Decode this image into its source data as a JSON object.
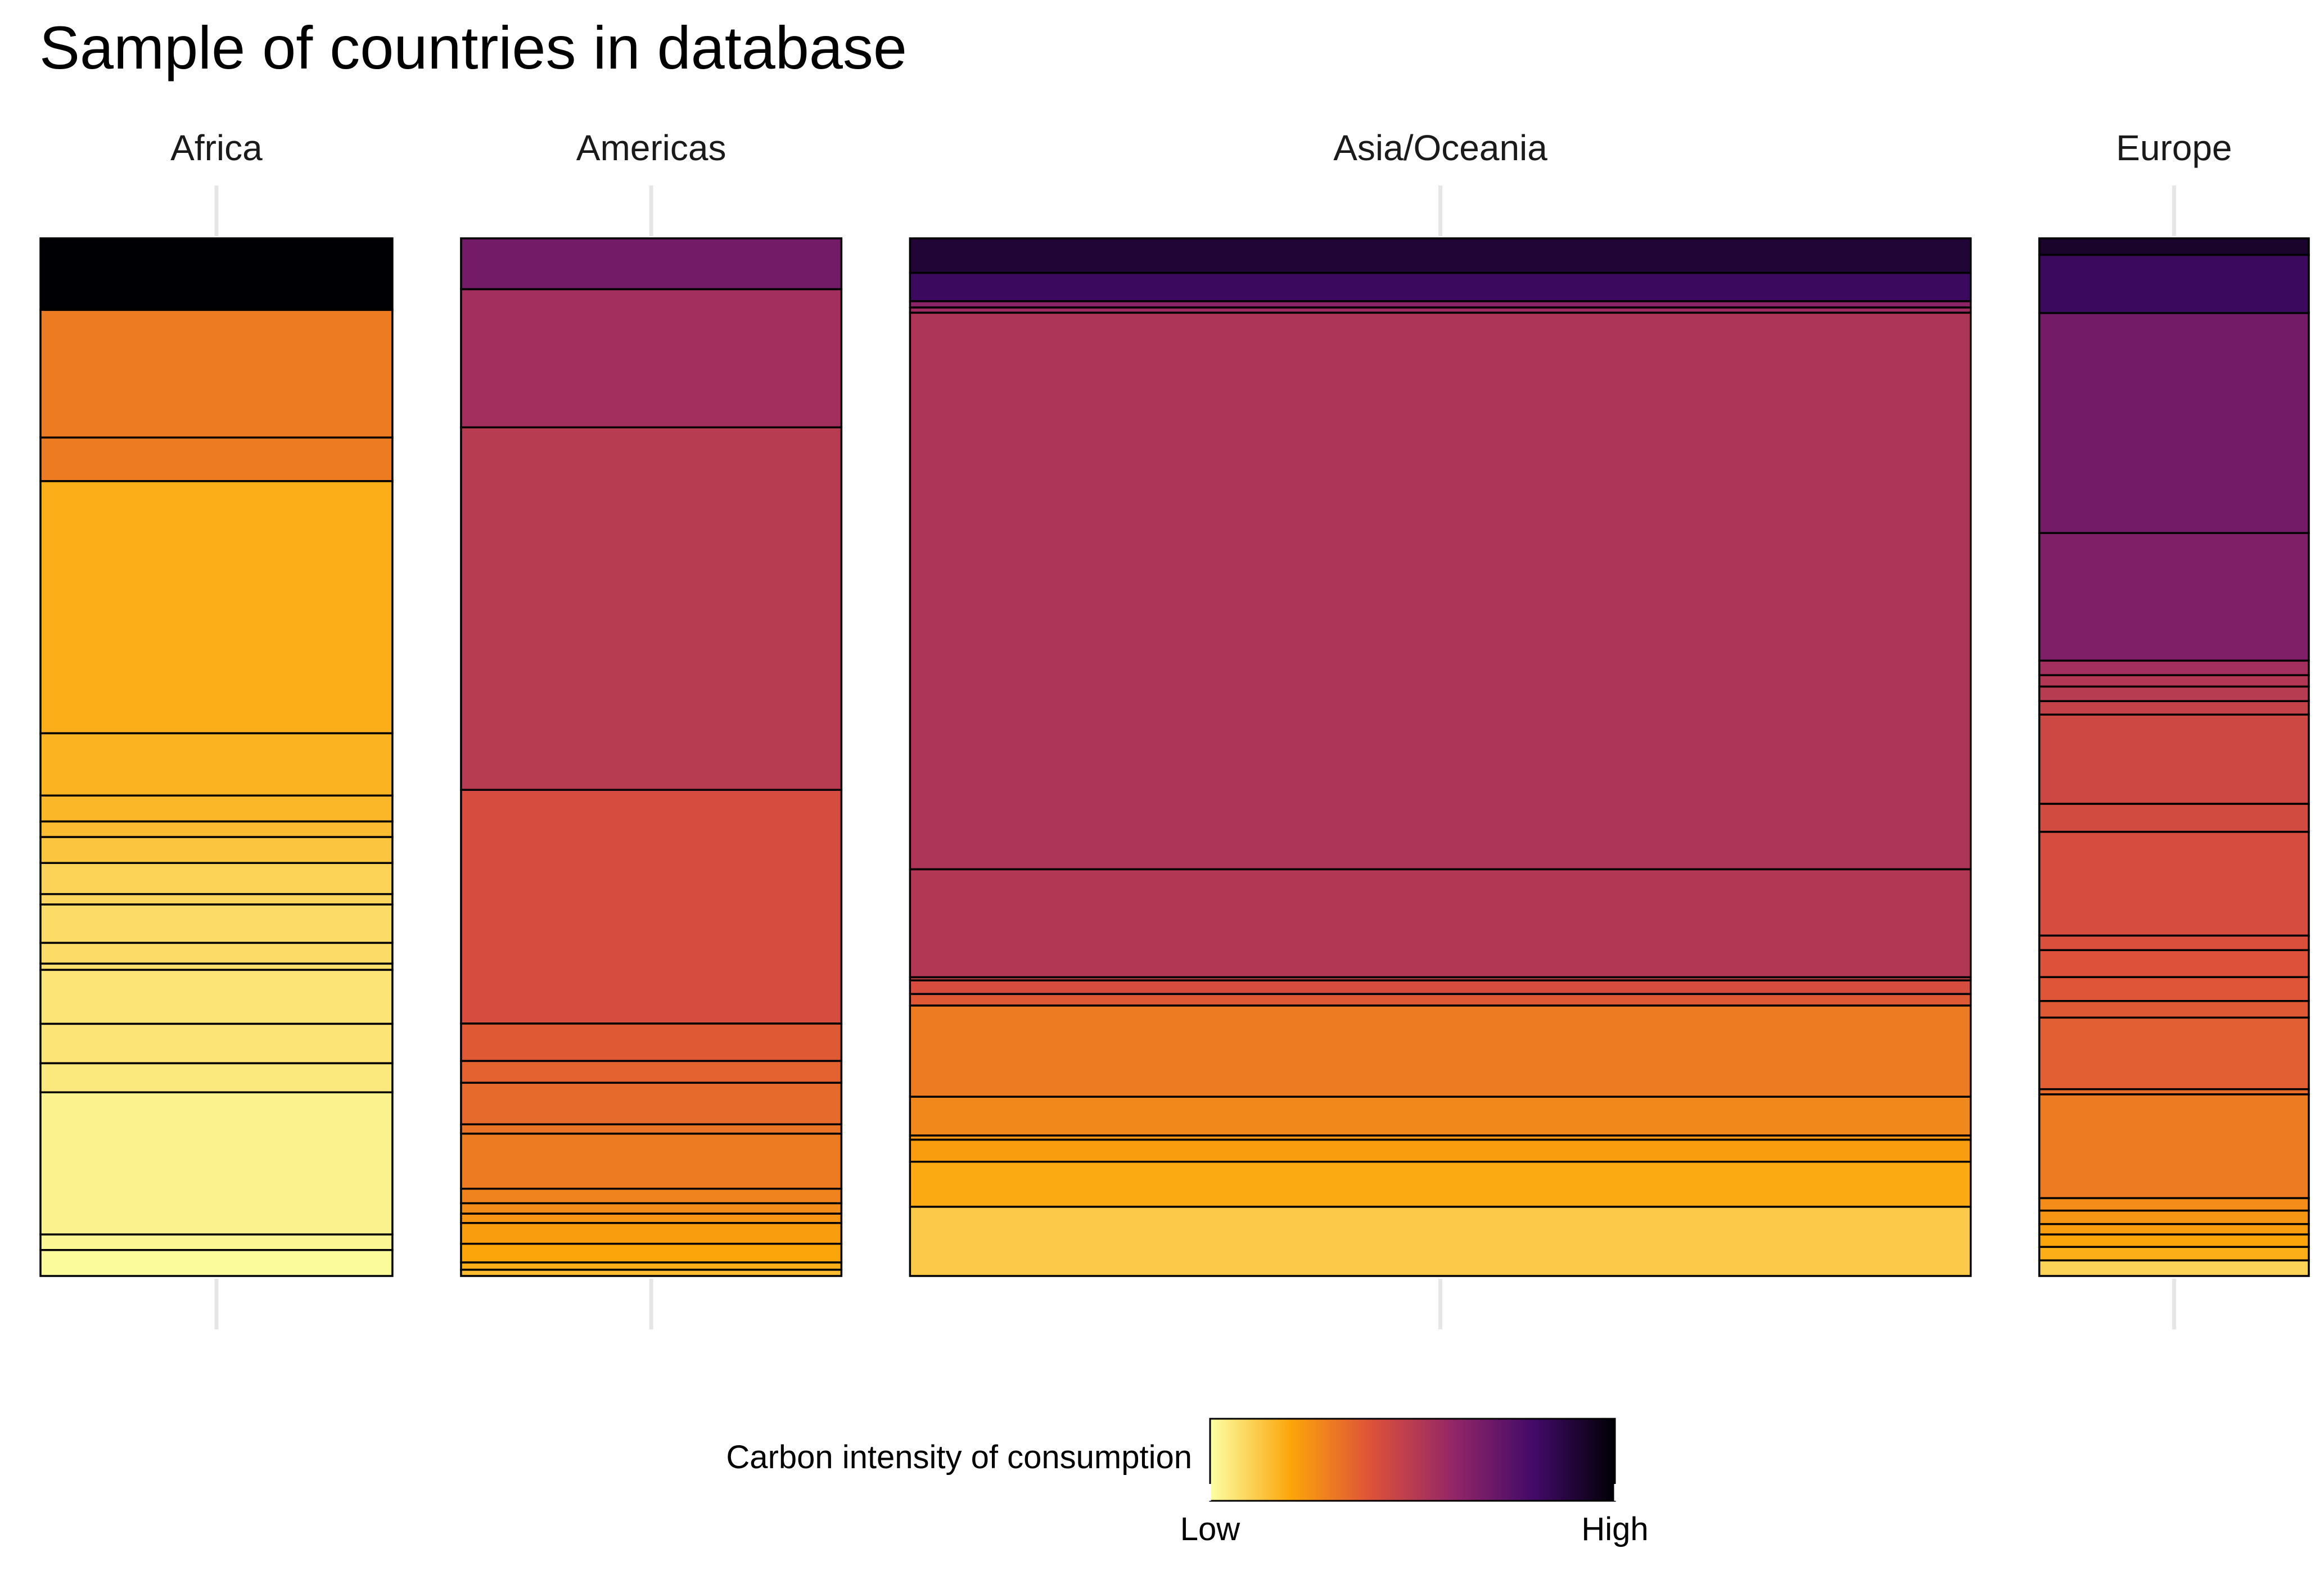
{
  "chart_data": {
    "type": "treemap",
    "title": "Sample of countries in database",
    "facets": [
      {
        "name": "Africa",
        "share_of_total_width": 0.1597,
        "segments": [
          {
            "share": 0.069,
            "intensity": 1.0
          },
          {
            "share": 0.123,
            "intensity": 0.3
          },
          {
            "share": 0.042,
            "intensity": 0.3
          },
          {
            "share": 0.243,
            "intensity": 0.18
          },
          {
            "share": 0.06,
            "intensity": 0.17
          },
          {
            "share": 0.025,
            "intensity": 0.16
          },
          {
            "share": 0.015,
            "intensity": 0.15
          },
          {
            "share": 0.025,
            "intensity": 0.13
          },
          {
            "share": 0.03,
            "intensity": 0.1
          },
          {
            "share": 0.01,
            "intensity": 0.09
          },
          {
            "share": 0.037,
            "intensity": 0.08
          },
          {
            "share": 0.02,
            "intensity": 0.08
          },
          {
            "share": 0.006,
            "intensity": 0.07
          },
          {
            "share": 0.052,
            "intensity": 0.06
          },
          {
            "share": 0.038,
            "intensity": 0.06
          },
          {
            "share": 0.028,
            "intensity": 0.05
          },
          {
            "share": 0.137,
            "intensity": 0.03
          },
          {
            "share": 0.015,
            "intensity": 0.02
          },
          {
            "share": 0.025,
            "intensity": 0.01
          }
        ]
      },
      {
        "name": "Americas",
        "share_of_total_width": 0.1726,
        "segments": [
          {
            "share": 0.049,
            "intensity": 0.68
          },
          {
            "share": 0.133,
            "intensity": 0.56
          },
          {
            "share": 0.349,
            "intensity": 0.5
          },
          {
            "share": 0.225,
            "intensity": 0.42
          },
          {
            "share": 0.036,
            "intensity": 0.38
          },
          {
            "share": 0.021,
            "intensity": 0.36
          },
          {
            "share": 0.04,
            "intensity": 0.34
          },
          {
            "share": 0.009,
            "intensity": 0.32
          },
          {
            "share": 0.053,
            "intensity": 0.3
          },
          {
            "share": 0.014,
            "intensity": 0.28
          },
          {
            "share": 0.01,
            "intensity": 0.26
          },
          {
            "share": 0.009,
            "intensity": 0.24
          },
          {
            "share": 0.02,
            "intensity": 0.22
          },
          {
            "share": 0.018,
            "intensity": 0.2
          },
          {
            "share": 0.007,
            "intensity": 0.18
          },
          {
            "share": 0.006,
            "intensity": 0.15
          }
        ]
      },
      {
        "name": "Asia/Oceania",
        "share_of_total_width": 0.4813,
        "segments": [
          {
            "share": 0.033,
            "intensity": 0.9
          },
          {
            "share": 0.027,
            "intensity": 0.82
          },
          {
            "share": 0.006,
            "intensity": 0.62
          },
          {
            "share": 0.005,
            "intensity": 0.57
          },
          {
            "share": 0.531,
            "intensity": 0.53
          },
          {
            "share": 0.103,
            "intensity": 0.52
          },
          {
            "share": 0.003,
            "intensity": 0.46
          },
          {
            "share": 0.013,
            "intensity": 0.42
          },
          {
            "share": 0.011,
            "intensity": 0.38
          },
          {
            "share": 0.087,
            "intensity": 0.3
          },
          {
            "share": 0.037,
            "intensity": 0.27
          },
          {
            "share": 0.004,
            "intensity": 0.24
          },
          {
            "share": 0.021,
            "intensity": 0.22
          },
          {
            "share": 0.043,
            "intensity": 0.19
          },
          {
            "share": 0.066,
            "intensity": 0.12
          }
        ]
      },
      {
        "name": "Europe",
        "share_of_total_width": 0.1223,
        "segments": [
          {
            "share": 0.016,
            "intensity": 0.92
          },
          {
            "share": 0.056,
            "intensity": 0.82
          },
          {
            "share": 0.212,
            "intensity": 0.68
          },
          {
            "share": 0.123,
            "intensity": 0.65
          },
          {
            "share": 0.014,
            "intensity": 0.56
          },
          {
            "share": 0.011,
            "intensity": 0.52
          },
          {
            "share": 0.014,
            "intensity": 0.5
          },
          {
            "share": 0.013,
            "intensity": 0.47
          },
          {
            "share": 0.086,
            "intensity": 0.44
          },
          {
            "share": 0.027,
            "intensity": 0.43
          },
          {
            "share": 0.1,
            "intensity": 0.42
          },
          {
            "share": 0.014,
            "intensity": 0.41
          },
          {
            "share": 0.026,
            "intensity": 0.4
          },
          {
            "share": 0.023,
            "intensity": 0.39
          },
          {
            "share": 0.016,
            "intensity": 0.38
          },
          {
            "share": 0.069,
            "intensity": 0.37
          },
          {
            "share": 0.005,
            "intensity": 0.34
          },
          {
            "share": 0.1,
            "intensity": 0.3
          },
          {
            "share": 0.012,
            "intensity": 0.26
          },
          {
            "share": 0.013,
            "intensity": 0.24
          },
          {
            "share": 0.01,
            "intensity": 0.22
          },
          {
            "share": 0.012,
            "intensity": 0.2
          },
          {
            "share": 0.013,
            "intensity": 0.18
          },
          {
            "share": 0.015,
            "intensity": 0.1
          }
        ]
      }
    ],
    "legend": {
      "title": "Carbon intensity of consumption",
      "low_label": "Low",
      "high_label": "High",
      "position": "bottom",
      "palette": "inferno",
      "colors": [
        "#fcffa4",
        "#fca50a",
        "#dd513a",
        "#932667",
        "#420a68",
        "#000004"
      ]
    },
    "grid": false
  }
}
